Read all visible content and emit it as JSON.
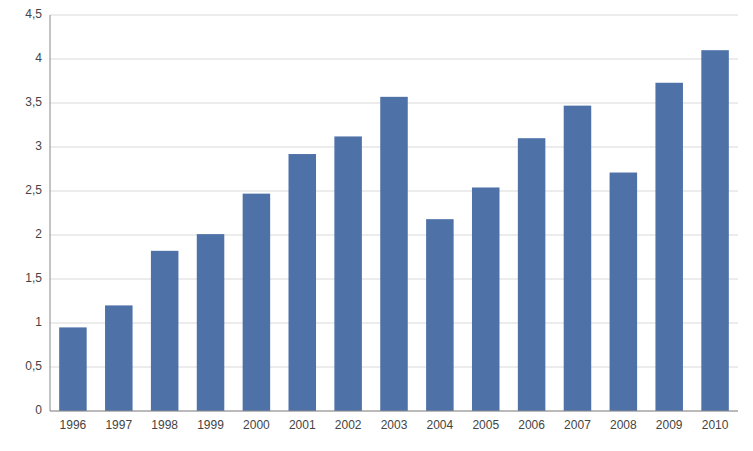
{
  "chart_data": {
    "type": "bar",
    "categories": [
      "1996",
      "1997",
      "1998",
      "1999",
      "2000",
      "2001",
      "2002",
      "2003",
      "2004",
      "2005",
      "2006",
      "2007",
      "2008",
      "2009",
      "2010"
    ],
    "values": [
      0.95,
      1.2,
      1.82,
      2.01,
      2.47,
      2.92,
      3.12,
      3.57,
      2.18,
      2.54,
      3.1,
      3.47,
      2.71,
      3.73,
      4.1
    ],
    "color": "#4E72A8",
    "ylim": [
      0,
      4.5
    ],
    "yticks": [
      0,
      {
        "value": 0.5,
        "label": "0,5"
      },
      1,
      {
        "value": 1.5,
        "label": "1,5"
      },
      2,
      {
        "value": 2.5,
        "label": "2,5"
      },
      3,
      {
        "value": 3.5,
        "label": "3,5"
      },
      4,
      {
        "value": 4.5,
        "label": "4,5"
      }
    ],
    "grid": true
  }
}
